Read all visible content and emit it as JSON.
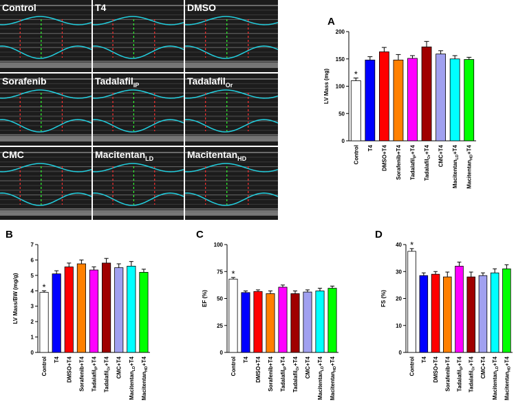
{
  "echo_panels": [
    {
      "label": "Control"
    },
    {
      "label": "T4"
    },
    {
      "label": "DMSO"
    },
    {
      "label": "Sorafenib"
    },
    {
      "label": "Tadalafil",
      "sub": "IP"
    },
    {
      "label": "Tadalafil",
      "sub": "Or"
    },
    {
      "label": "CMC"
    },
    {
      "label": "Macitentan",
      "sub": "LD"
    },
    {
      "label": "Macitentan",
      "sub": "HD"
    }
  ],
  "chart_data": [
    {
      "type": "bar",
      "panel": "A",
      "ylabel": "LV Mass (mg)",
      "categories": [
        {
          "text": "Control"
        },
        {
          "text": "T4"
        },
        {
          "text": "DMSO+T4"
        },
        {
          "text": "Sorafenib+T4"
        },
        {
          "text": "Tadalafil",
          "sub": "IP",
          "tail": "+T4"
        },
        {
          "text": "Tadalafil",
          "sub": "Or",
          "tail": "+T4"
        },
        {
          "text": "CMC+T4"
        },
        {
          "text": "Macitentan",
          "sub": "LD",
          "tail": "+T4"
        },
        {
          "text": "Macitentan",
          "sub": "HD",
          "tail": "+T4"
        }
      ],
      "values": [
        110,
        148,
        163,
        148,
        151,
        172,
        159,
        150,
        149
      ],
      "errors": [
        5,
        6,
        8,
        10,
        5,
        10,
        6,
        6,
        4
      ],
      "markers": [
        "*",
        null,
        null,
        null,
        null,
        null,
        null,
        null,
        null
      ],
      "colors": [
        "#ffffff",
        "#0000ff",
        "#ff0000",
        "#ff8000",
        "#ff00ff",
        "#a00000",
        "#a0a0f0",
        "#00ffff",
        "#00ff00"
      ],
      "ylim": [
        0,
        200
      ],
      "yticks": [
        0,
        50,
        100,
        150,
        200
      ]
    },
    {
      "type": "bar",
      "panel": "B",
      "ylabel": "LV Mass/BW (mg/g)",
      "categories": [
        {
          "text": "Control"
        },
        {
          "text": "T4"
        },
        {
          "text": "DMSO+T4"
        },
        {
          "text": "Sorafenib+T4"
        },
        {
          "text": "Tadalafil",
          "sub": "IP",
          "tail": "+T4"
        },
        {
          "text": "Tadalafil",
          "sub": "Or",
          "tail": "+T4"
        },
        {
          "text": "CMC+T4"
        },
        {
          "text": "Macitentan",
          "sub": "LD",
          "tail": "+T4"
        },
        {
          "text": "Macitentan",
          "sub": "HD",
          "tail": "+T4"
        }
      ],
      "values": [
        3.9,
        5.1,
        5.55,
        5.75,
        5.35,
        5.8,
        5.5,
        5.6,
        5.2
      ],
      "errors": [
        0.1,
        0.2,
        0.25,
        0.25,
        0.2,
        0.3,
        0.25,
        0.3,
        0.2
      ],
      "markers": [
        "*",
        null,
        null,
        null,
        null,
        null,
        null,
        null,
        null
      ],
      "colors": [
        "#ffffff",
        "#0000ff",
        "#ff0000",
        "#ff8000",
        "#ff00ff",
        "#a00000",
        "#a0a0f0",
        "#00ffff",
        "#00ff00"
      ],
      "ylim": [
        0,
        7
      ],
      "yticks": [
        0,
        1,
        2,
        3,
        4,
        5,
        6,
        7
      ]
    },
    {
      "type": "bar",
      "panel": "C",
      "ylabel": "EF (%)",
      "categories": [
        {
          "text": "Control"
        },
        {
          "text": "T4"
        },
        {
          "text": "DMSO+T4"
        },
        {
          "text": "Sorafenib+T4"
        },
        {
          "text": "Tadalafil",
          "sub": "IP",
          "tail": "+T4"
        },
        {
          "text": "Tadalafil",
          "sub": "Or",
          "tail": "+T4"
        },
        {
          "text": "CMC+T4"
        },
        {
          "text": "Macitentan",
          "sub": "LD",
          "tail": "+T4"
        },
        {
          "text": "Macitentan",
          "sub": "HD",
          "tail": "+T4"
        }
      ],
      "values": [
        68,
        55.5,
        56.5,
        54.5,
        60.5,
        54.5,
        56,
        57,
        59.5
      ],
      "errors": [
        1.5,
        1.5,
        1.5,
        2.5,
        2,
        2.5,
        2,
        2.5,
        2
      ],
      "markers": [
        "*",
        null,
        null,
        null,
        null,
        null,
        null,
        null,
        null
      ],
      "colors": [
        "#ffffff",
        "#0000ff",
        "#ff0000",
        "#ff8000",
        "#ff00ff",
        "#a00000",
        "#a0a0f0",
        "#00ffff",
        "#00ff00"
      ],
      "ylim": [
        0,
        100
      ],
      "yticks": [
        0,
        25,
        50,
        75,
        100
      ]
    },
    {
      "type": "bar",
      "panel": "D",
      "ylabel": "FS (%)",
      "categories": [
        {
          "text": "Control"
        },
        {
          "text": "T4"
        },
        {
          "text": "DMSO+T4"
        },
        {
          "text": "Sorafenib+T4"
        },
        {
          "text": "Tadalafil",
          "sub": "IP",
          "tail": "+T4"
        },
        {
          "text": "Tadalafil",
          "sub": "Or",
          "tail": "+T4"
        },
        {
          "text": "CMC+T4"
        },
        {
          "text": "Macitentan",
          "sub": "LD",
          "tail": "+T4"
        },
        {
          "text": "Macitentan",
          "sub": "HD",
          "tail": "+T4"
        }
      ],
      "values": [
        37.5,
        28.5,
        29,
        28,
        32,
        28,
        28.5,
        29.5,
        31
      ],
      "errors": [
        1,
        1,
        1,
        1.8,
        1.5,
        1.8,
        1,
        1.5,
        1.5
      ],
      "markers": [
        "*",
        null,
        null,
        null,
        null,
        null,
        null,
        null,
        null
      ],
      "colors": [
        "#ffffff",
        "#0000ff",
        "#ff0000",
        "#ff8000",
        "#ff00ff",
        "#a00000",
        "#a0a0f0",
        "#00ffff",
        "#00ff00"
      ],
      "ylim": [
        0,
        40
      ],
      "yticks": [
        0,
        10,
        20,
        30,
        40
      ]
    }
  ]
}
